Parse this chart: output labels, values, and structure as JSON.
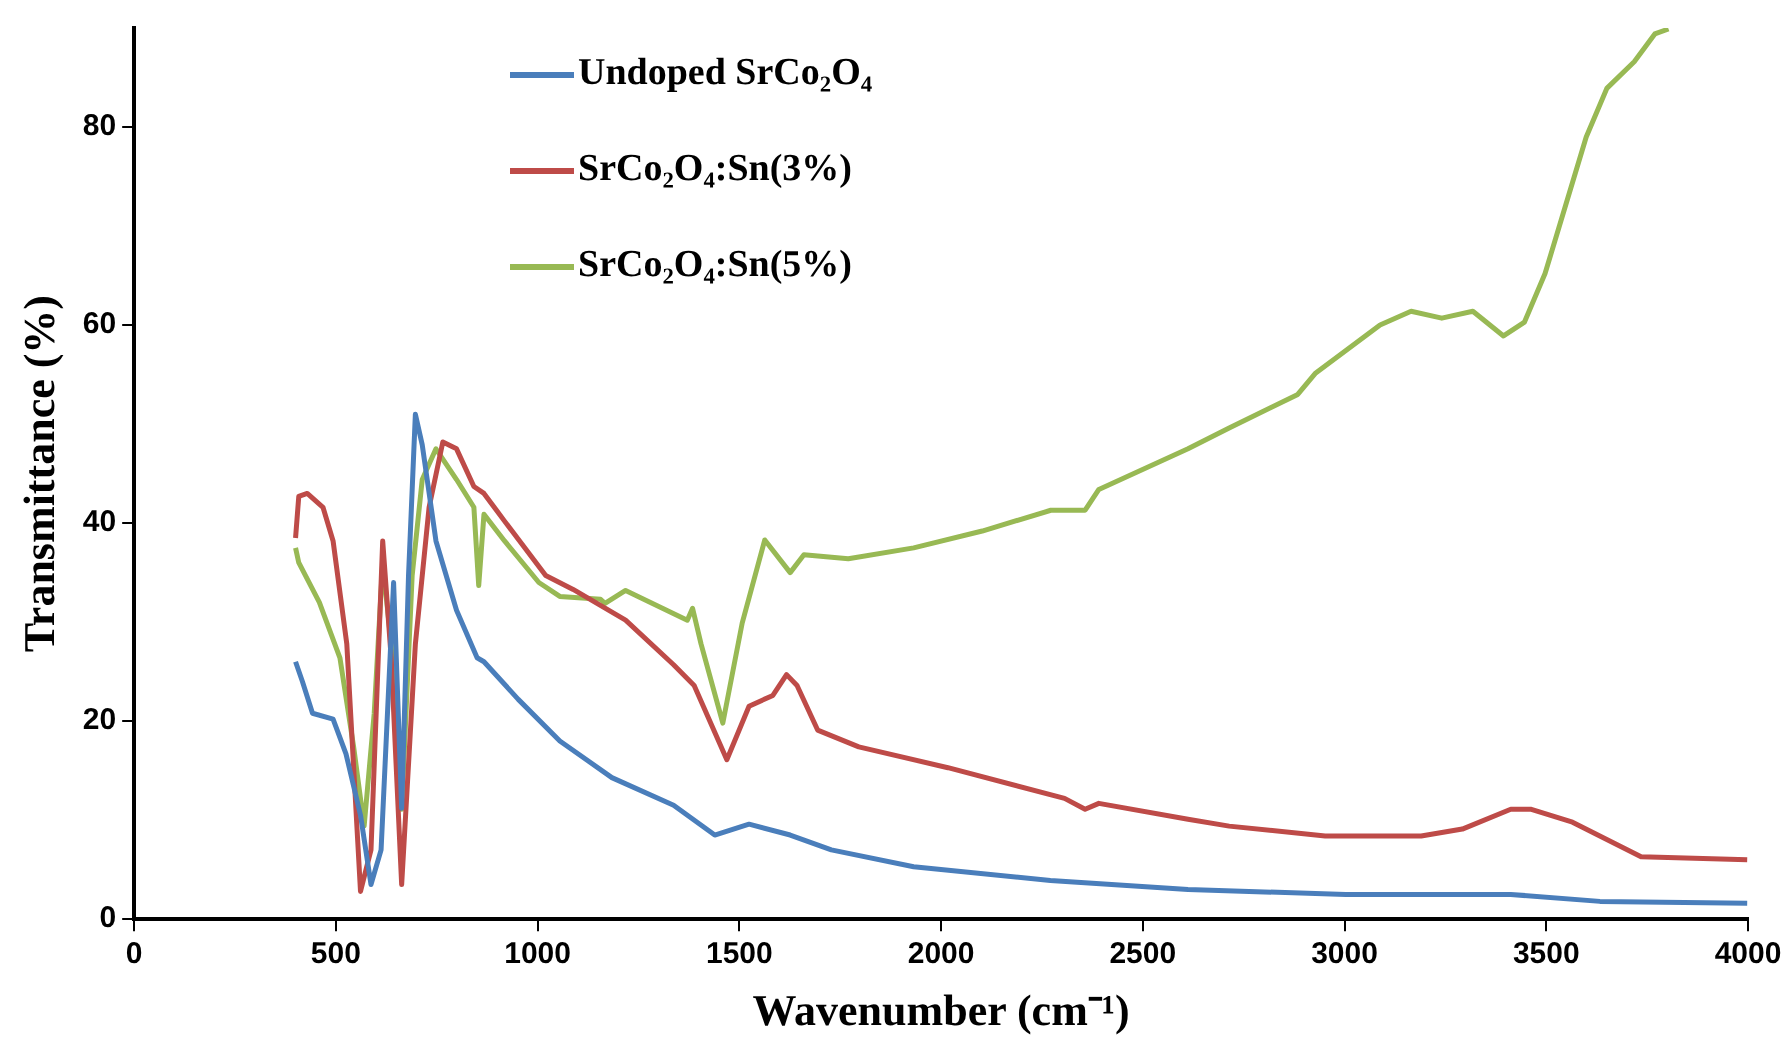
{
  "chart_data": {
    "type": "line",
    "xlabel": "Wavenumber (cm⁻¹)",
    "ylabel": "Transmittance (%)",
    "xlim": [
      0,
      4000
    ],
    "xticks": [
      0,
      500,
      1000,
      1500,
      2000,
      2500,
      3000,
      3500,
      4000
    ],
    "ylim": [
      0,
      90
    ],
    "yticks": [
      0,
      20,
      40,
      60,
      80
    ],
    "grid": false,
    "legend": "top",
    "marker": "none",
    "line_style": "solid",
    "series": [
      {
        "name": "Undoped SrCo₂O₄",
        "color": "#4a7ebb",
        "x": [
          400,
          417,
          442,
          493,
          525,
          561,
          587,
          612,
          643,
          663,
          680,
          697,
          714,
          748,
          799,
          850,
          867,
          952,
          1055,
          1184,
          1337,
          1439,
          1524,
          1626,
          1728,
          1932,
          2271,
          2612,
          3003,
          3412,
          3633,
          3998
        ],
        "values": [
          26,
          24,
          20.8,
          20.2,
          16.7,
          10.5,
          3.5,
          7,
          34,
          11.2,
          34.7,
          51,
          47.9,
          38.2,
          31.2,
          26.4,
          26,
          22.2,
          18,
          14.3,
          11.5,
          8.5,
          9.6,
          8.5,
          7,
          5.3,
          3.9,
          3,
          2.5,
          2.5,
          1.8,
          1.6
        ]
      },
      {
        "name": "SrCo₂O₄:Sn(3%)",
        "color": "#be4b48",
        "x": [
          400,
          408,
          429,
          468,
          493,
          527,
          561,
          587,
          616,
          637,
          663,
          697,
          731,
          765,
          799,
          842,
          867,
          918,
          1020,
          1088,
          1218,
          1337,
          1388,
          1469,
          1524,
          1583,
          1617,
          1643,
          1694,
          1796,
          2017,
          2306,
          2357,
          2391,
          2612,
          2714,
          2952,
          3190,
          3292,
          3412,
          3463,
          3565,
          3735,
          3998
        ],
        "values": [
          38.5,
          42.7,
          43,
          41.6,
          38.2,
          27.8,
          2.8,
          7,
          38.2,
          26.4,
          3.5,
          27.8,
          41.6,
          48.2,
          47.5,
          43.7,
          43,
          40.2,
          34.7,
          33.3,
          30.2,
          25.7,
          23.6,
          16.1,
          21.5,
          22.6,
          24.7,
          23.6,
          19.1,
          17.4,
          15.3,
          12.2,
          11.1,
          11.7,
          10.1,
          9.4,
          8.4,
          8.4,
          9.1,
          11.1,
          11.1,
          9.8,
          6.3,
          6
        ]
      },
      {
        "name": "SrCo₂O₄:Sn(5%)",
        "color": "#98b954",
        "x": [
          400,
          408,
          459,
          510,
          544,
          570,
          595,
          616,
          637,
          663,
          689,
          714,
          748,
          799,
          842,
          854,
          867,
          918,
          1003,
          1055,
          1156,
          1167,
          1218,
          1371,
          1384,
          1405,
          1459,
          1507,
          1563,
          1626,
          1660,
          1770,
          1932,
          2102,
          2272,
          2357,
          2391,
          2612,
          2714,
          2884,
          2927,
          3088,
          3165,
          3241,
          3318,
          3394,
          3446,
          3497,
          3548,
          3599,
          3650,
          3718,
          3769,
          3803
        ],
        "values": [
          37.5,
          36,
          32,
          26.4,
          17.4,
          9.4,
          20.8,
          36,
          27.8,
          11.1,
          34.7,
          44.4,
          47.5,
          44.4,
          41.6,
          33.7,
          40.9,
          38.2,
          34,
          32.6,
          32.3,
          31.9,
          33.2,
          30.2,
          31.4,
          27.8,
          19.8,
          29.9,
          38.3,
          35,
          36.8,
          36.4,
          37.5,
          39.2,
          41.3,
          41.3,
          43.4,
          47.5,
          49.6,
          53,
          55.1,
          60,
          61.4,
          60.7,
          61.4,
          58.9,
          60.3,
          65.2,
          72.1,
          79,
          83.9,
          86.6,
          89.4,
          89.9
        ]
      }
    ]
  }
}
